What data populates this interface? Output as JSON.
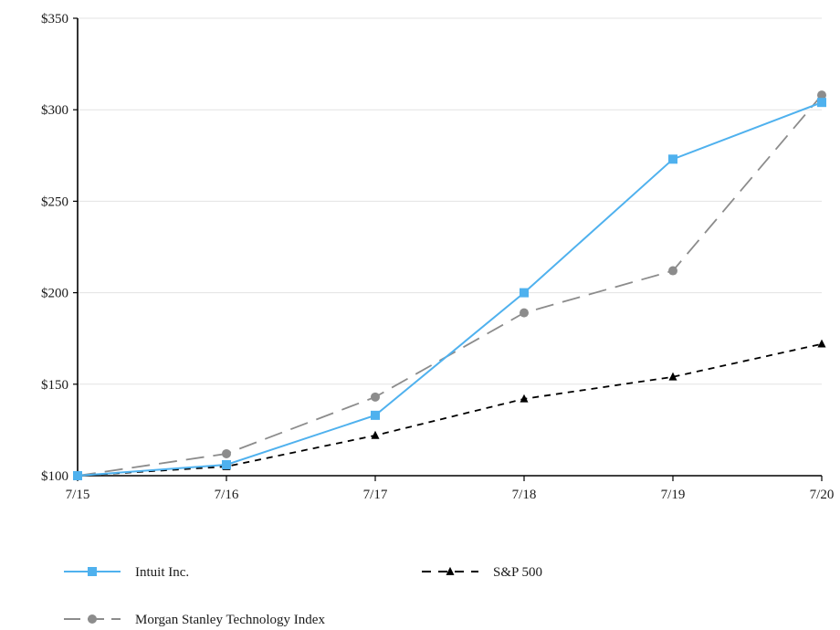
{
  "chart_data": {
    "type": "line",
    "title": "",
    "xlabel": "",
    "ylabel": "",
    "categories": [
      "7/15",
      "7/16",
      "7/17",
      "7/18",
      "7/19",
      "7/20"
    ],
    "ylim": [
      100,
      350
    ],
    "yticks": [
      100,
      150,
      200,
      250,
      300,
      350
    ],
    "ytick_labels": [
      "$100",
      "$150",
      "$200",
      "$250",
      "$300",
      "$350"
    ],
    "grid": "horizontal",
    "legend_position": "bottom",
    "series": [
      {
        "name": "Intuit Inc.",
        "values": [
          100,
          106,
          133,
          200,
          273,
          304
        ],
        "color": "#4fb1ee",
        "marker": "square",
        "line_style": "solid"
      },
      {
        "name": "S&P 500",
        "values": [
          100,
          105,
          122,
          142,
          154,
          172
        ],
        "color": "#000000",
        "marker": "triangle",
        "line_style": "dashed"
      },
      {
        "name": "Morgan Stanley Technology Index",
        "values": [
          100,
          112,
          143,
          189,
          212,
          308
        ],
        "color": "#8c8c8c",
        "marker": "circle",
        "line_style": "long-dashed"
      }
    ]
  }
}
